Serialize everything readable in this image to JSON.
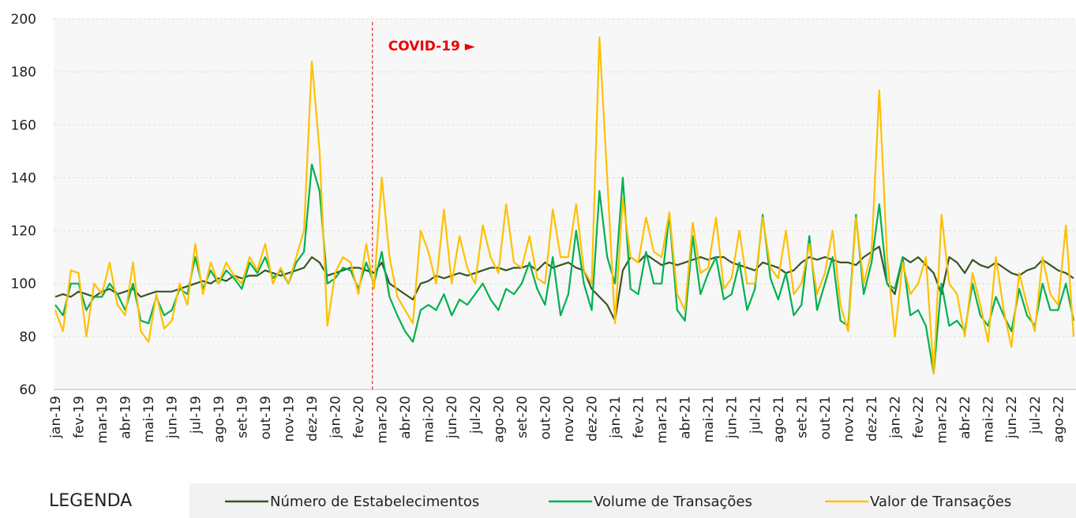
{
  "chart_data": {
    "type": "line",
    "categories": [
      "jan-19",
      null,
      null,
      "fev-19",
      null,
      null,
      "mar-19",
      null,
      null,
      "abr-19",
      null,
      null,
      "mai-19",
      null,
      null,
      "jun-19",
      null,
      null,
      "jul-19",
      null,
      null,
      "ago-19",
      null,
      null,
      "set-19",
      null,
      null,
      "out-19",
      null,
      null,
      "nov-19",
      null,
      null,
      "dez-19",
      null,
      null,
      "jan-20",
      null,
      null,
      "fev-20",
      null,
      null,
      "mar-20",
      null,
      null,
      "abr-20",
      null,
      null,
      "mai-20",
      null,
      null,
      "jun-20",
      null,
      null,
      "jul-20",
      null,
      null,
      "ago-20",
      null,
      null,
      "set-20",
      null,
      null,
      "out-20",
      null,
      null,
      "nov-20",
      null,
      null,
      "dez-20",
      null,
      null,
      "jan-21",
      null,
      null,
      "fev-21",
      null,
      null,
      "mar-21",
      null,
      null,
      "abr-21",
      null,
      null,
      "mai-21",
      null,
      null,
      "jun-21",
      null,
      null,
      "jul-21",
      null,
      null,
      "ago-21",
      null,
      null,
      "set-21",
      null,
      null,
      "out-21",
      null,
      null,
      "nov-21",
      null,
      null,
      "dez-21",
      null,
      null,
      "jan-22",
      null,
      null,
      "fev-22",
      null,
      null,
      "mar-22",
      null,
      null,
      "abr-22",
      null,
      null,
      "mai-22",
      null,
      null,
      "jun-22",
      null,
      null,
      "jul-22",
      null,
      null,
      "ago-22",
      null,
      null
    ],
    "series": [
      {
        "name": "Número de Estabelecimentos",
        "color": "#375623",
        "values": [
          95,
          96,
          95,
          97,
          96,
          95,
          97,
          98,
          96,
          97,
          98,
          95,
          96,
          97,
          97,
          97,
          98,
          99,
          100,
          101,
          100,
          102,
          101,
          103,
          102,
          103,
          103,
          105,
          104,
          103,
          104,
          105,
          106,
          110,
          108,
          103,
          104,
          105,
          106,
          106,
          105,
          104,
          108,
          100,
          98,
          96,
          94,
          100,
          101,
          103,
          102,
          103,
          104,
          103,
          104,
          105,
          106,
          106,
          105,
          106,
          106,
          107,
          105,
          108,
          106,
          107,
          108,
          106,
          105,
          98,
          95,
          92,
          86,
          105,
          110,
          108,
          111,
          109,
          107,
          108,
          107,
          108,
          109,
          110,
          109,
          110,
          110,
          108,
          107,
          106,
          105,
          108,
          107,
          106,
          104,
          105,
          108,
          110,
          109,
          110,
          109,
          108,
          108,
          107,
          110,
          112,
          114,
          100,
          96,
          110,
          108,
          110,
          107,
          104,
          96,
          110,
          108,
          104,
          109,
          107,
          106,
          108,
          106,
          104,
          103,
          105,
          106,
          109,
          107,
          105,
          104,
          102
        ]
      },
      {
        "name": "Volume de Transações",
        "color": "#00b050",
        "values": [
          92,
          88,
          100,
          100,
          90,
          95,
          95,
          100,
          96,
          90,
          100,
          86,
          85,
          95,
          88,
          90,
          98,
          96,
          110,
          98,
          105,
          100,
          105,
          102,
          98,
          108,
          104,
          110,
          102,
          105,
          100,
          108,
          112,
          145,
          135,
          100,
          102,
          106,
          105,
          98,
          108,
          100,
          112,
          95,
          88,
          82,
          78,
          90,
          92,
          90,
          96,
          88,
          94,
          92,
          96,
          100,
          94,
          90,
          98,
          96,
          100,
          108,
          98,
          92,
          110,
          88,
          96,
          120,
          100,
          90,
          135,
          110,
          100,
          140,
          98,
          96,
          112,
          100,
          100,
          126,
          90,
          86,
          118,
          96,
          104,
          110,
          94,
          96,
          108,
          90,
          98,
          126,
          102,
          94,
          104,
          88,
          92,
          118,
          90,
          100,
          110,
          86,
          84,
          126,
          96,
          108,
          130,
          100,
          98,
          110,
          88,
          90,
          84,
          66,
          100,
          84,
          86,
          82,
          100,
          88,
          84,
          95,
          88,
          82,
          98,
          88,
          84,
          100,
          90,
          90,
          100,
          86
        ]
      },
      {
        "name": "Valor de Transações",
        "color": "#ffc000",
        "values": [
          90,
          82,
          105,
          104,
          80,
          100,
          96,
          108,
          92,
          88,
          108,
          82,
          78,
          96,
          83,
          86,
          100,
          92,
          115,
          96,
          108,
          100,
          108,
          103,
          100,
          110,
          105,
          115,
          100,
          106,
          100,
          110,
          120,
          184,
          150,
          84,
          104,
          110,
          108,
          96,
          115,
          98,
          140,
          110,
          95,
          90,
          85,
          120,
          112,
          100,
          128,
          100,
          118,
          106,
          100,
          122,
          110,
          104,
          130,
          108,
          106,
          118,
          102,
          100,
          128,
          110,
          110,
          130,
          105,
          100,
          193,
          140,
          85,
          132,
          110,
          108,
          125,
          112,
          110,
          127,
          96,
          90,
          123,
          104,
          106,
          125,
          98,
          102,
          120,
          100,
          100,
          125,
          106,
          102,
          120,
          96,
          100,
          115,
          96,
          104,
          120,
          92,
          82,
          125,
          100,
          112,
          173,
          110,
          80,
          108,
          96,
          100,
          110,
          66,
          126,
          100,
          96,
          80,
          104,
          92,
          78,
          110,
          90,
          76,
          104,
          92,
          82,
          110,
          96,
          92,
          122,
          80
        ]
      }
    ],
    "ylim": [
      60,
      200
    ],
    "yticks": [
      60,
      80,
      100,
      120,
      140,
      160,
      180,
      200
    ],
    "grid": true,
    "annotation": {
      "text": "COVID-19 ►",
      "at": "mar-20"
    },
    "legend_title": "LEGENDA"
  }
}
